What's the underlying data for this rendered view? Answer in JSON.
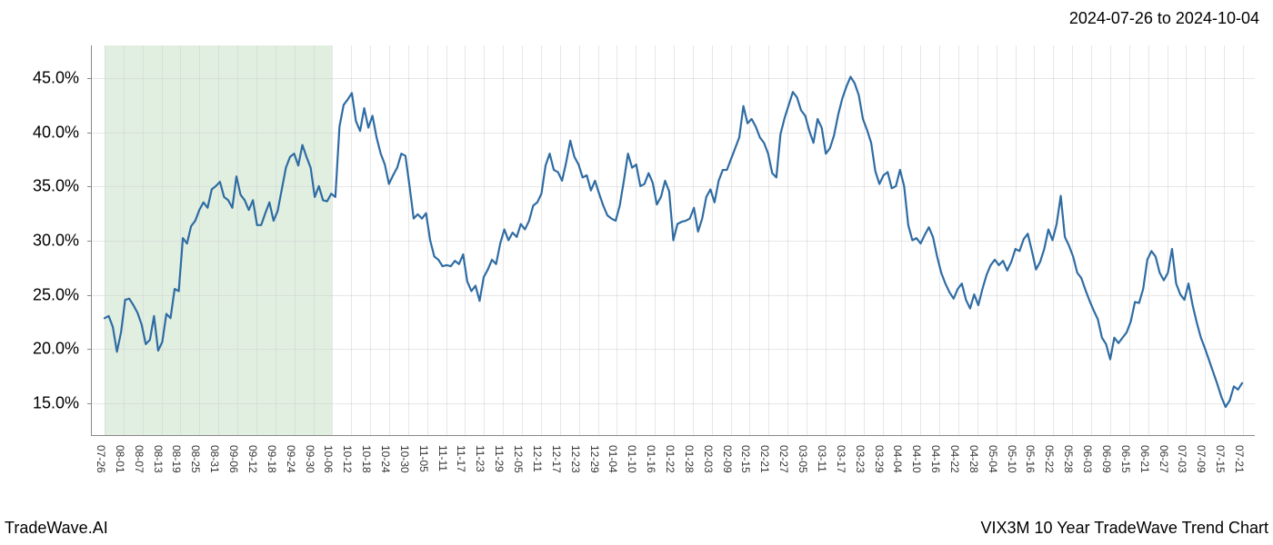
{
  "date_range_label": "2024-07-26 to 2024-10-04",
  "footer_left": "TradeWave.AI",
  "footer_right": "VIX3M 10 Year TradeWave Trend Chart",
  "chart": {
    "type": "line",
    "background_color": "#ffffff",
    "grid_color": "#d0d0d0",
    "axis_color": "#888888",
    "line_color": "#2f6ca3",
    "line_width": 2.2,
    "highlight_band_color": "#d4e8d4",
    "highlight_band_opacity": 0.7,
    "highlight_start_index": 0,
    "highlight_end_index": 12,
    "y_axis": {
      "min": 12,
      "max": 48,
      "ticks": [
        15,
        20,
        25,
        30,
        35,
        40,
        45
      ],
      "format_suffix": ".0%",
      "label_fontsize": 18,
      "label_color": "#000000"
    },
    "x_axis": {
      "label_fontsize": 12,
      "label_color": "#333333",
      "label_rotation": 90,
      "labels": [
        "07-26",
        "08-01",
        "08-07",
        "08-13",
        "08-19",
        "08-25",
        "08-31",
        "09-06",
        "09-12",
        "09-18",
        "09-24",
        "09-30",
        "10-06",
        "10-12",
        "10-18",
        "10-24",
        "10-30",
        "11-05",
        "11-11",
        "11-17",
        "11-23",
        "11-29",
        "12-05",
        "12-11",
        "12-17",
        "12-23",
        "12-29",
        "01-04",
        "01-10",
        "01-16",
        "01-22",
        "01-28",
        "02-03",
        "02-09",
        "02-15",
        "02-21",
        "02-27",
        "03-05",
        "03-11",
        "03-17",
        "03-23",
        "03-29",
        "04-04",
        "04-10",
        "04-16",
        "04-22",
        "04-28",
        "05-04",
        "05-10",
        "05-16",
        "05-22",
        "05-28",
        "06-03",
        "06-09",
        "06-15",
        "06-21",
        "06-27",
        "07-03",
        "07-09",
        "07-15",
        "07-21"
      ]
    },
    "series": [
      22.8,
      23.0,
      22.0,
      19.7,
      21.5,
      24.5,
      24.6,
      24.0,
      23.3,
      22.2,
      20.4,
      20.8,
      23.0,
      19.8,
      20.6,
      23.2,
      22.8,
      25.5,
      25.3,
      30.2,
      29.7,
      31.3,
      31.8,
      32.8,
      33.5,
      33.0,
      34.7,
      35.0,
      35.4,
      34.0,
      33.7,
      33.0,
      35.9,
      34.2,
      33.7,
      32.8,
      33.7,
      31.4,
      31.4,
      32.5,
      33.5,
      31.8,
      32.7,
      34.7,
      36.7,
      37.7,
      38.0,
      36.9,
      38.8,
      37.7,
      36.7,
      34.0,
      35.0,
      33.7,
      33.6,
      34.3,
      34.0,
      40.5,
      42.5,
      43.0,
      43.6,
      41.0,
      40.1,
      42.2,
      40.4,
      41.5,
      39.5,
      38.0,
      37.0,
      35.2,
      36.0,
      36.7,
      38.0,
      37.8,
      35.0,
      32.0,
      32.4,
      32.0,
      32.5,
      30.0,
      28.5,
      28.2,
      27.6,
      27.7,
      27.6,
      28.1,
      27.8,
      28.7,
      26.2,
      25.3,
      25.8,
      24.4,
      26.6,
      27.3,
      28.2,
      27.8,
      29.7,
      31.0,
      30.0,
      30.7,
      30.3,
      31.5,
      31.0,
      31.8,
      33.2,
      33.5,
      34.3,
      36.9,
      38.0,
      36.5,
      36.3,
      35.5,
      37.2,
      39.2,
      37.7,
      37.0,
      35.8,
      36.0,
      34.6,
      35.5,
      34.3,
      33.2,
      32.3,
      32.0,
      31.8,
      33.2,
      35.5,
      38.0,
      36.7,
      37.0,
      35.0,
      35.2,
      36.2,
      35.3,
      33.3,
      34.0,
      35.5,
      34.5,
      30.0,
      31.5,
      31.7,
      31.8,
      32.0,
      33.0,
      30.8,
      32.0,
      34.0,
      34.7,
      33.5,
      35.5,
      36.5,
      36.5,
      37.5,
      38.5,
      39.5,
      42.4,
      40.8,
      41.2,
      40.5,
      39.5,
      39.0,
      38.0,
      36.2,
      35.8,
      39.8,
      41.3,
      42.5,
      43.7,
      43.2,
      42.0,
      41.5,
      40.1,
      39.0,
      41.2,
      40.4,
      38.0,
      38.5,
      39.7,
      41.6,
      43.1,
      44.2,
      45.1,
      44.5,
      43.4,
      41.2,
      40.2,
      39.0,
      36.4,
      35.2,
      36.0,
      36.3,
      34.8,
      35.0,
      36.5,
      35.0,
      31.4,
      30.0,
      30.2,
      29.7,
      30.5,
      31.2,
      30.3,
      28.5,
      27.0,
      26.0,
      25.2,
      24.6,
      25.5,
      26.0,
      24.5,
      23.7,
      25.0,
      24.0,
      25.5,
      26.8,
      27.7,
      28.2,
      27.7,
      28.1,
      27.2,
      28.0,
      29.2,
      29.0,
      30.1,
      30.6,
      29.0,
      27.3,
      28.0,
      29.2,
      31.0,
      30.0,
      31.5,
      34.1,
      30.3,
      29.5,
      28.5,
      27.0,
      26.5,
      25.4,
      24.4,
      23.5,
      22.7,
      21.0,
      20.4,
      19.0,
      21.0,
      20.5,
      21.0,
      21.5,
      22.5,
      24.3,
      24.2,
      25.5,
      28.2,
      29.0,
      28.5,
      27.0,
      26.3,
      27.0,
      29.2,
      26.0,
      25.0,
      24.5,
      26.0,
      24.0,
      22.4,
      21.0,
      20.0,
      18.9,
      17.8,
      16.7,
      15.5,
      14.6,
      15.2,
      16.5,
      16.2,
      16.8
    ]
  }
}
